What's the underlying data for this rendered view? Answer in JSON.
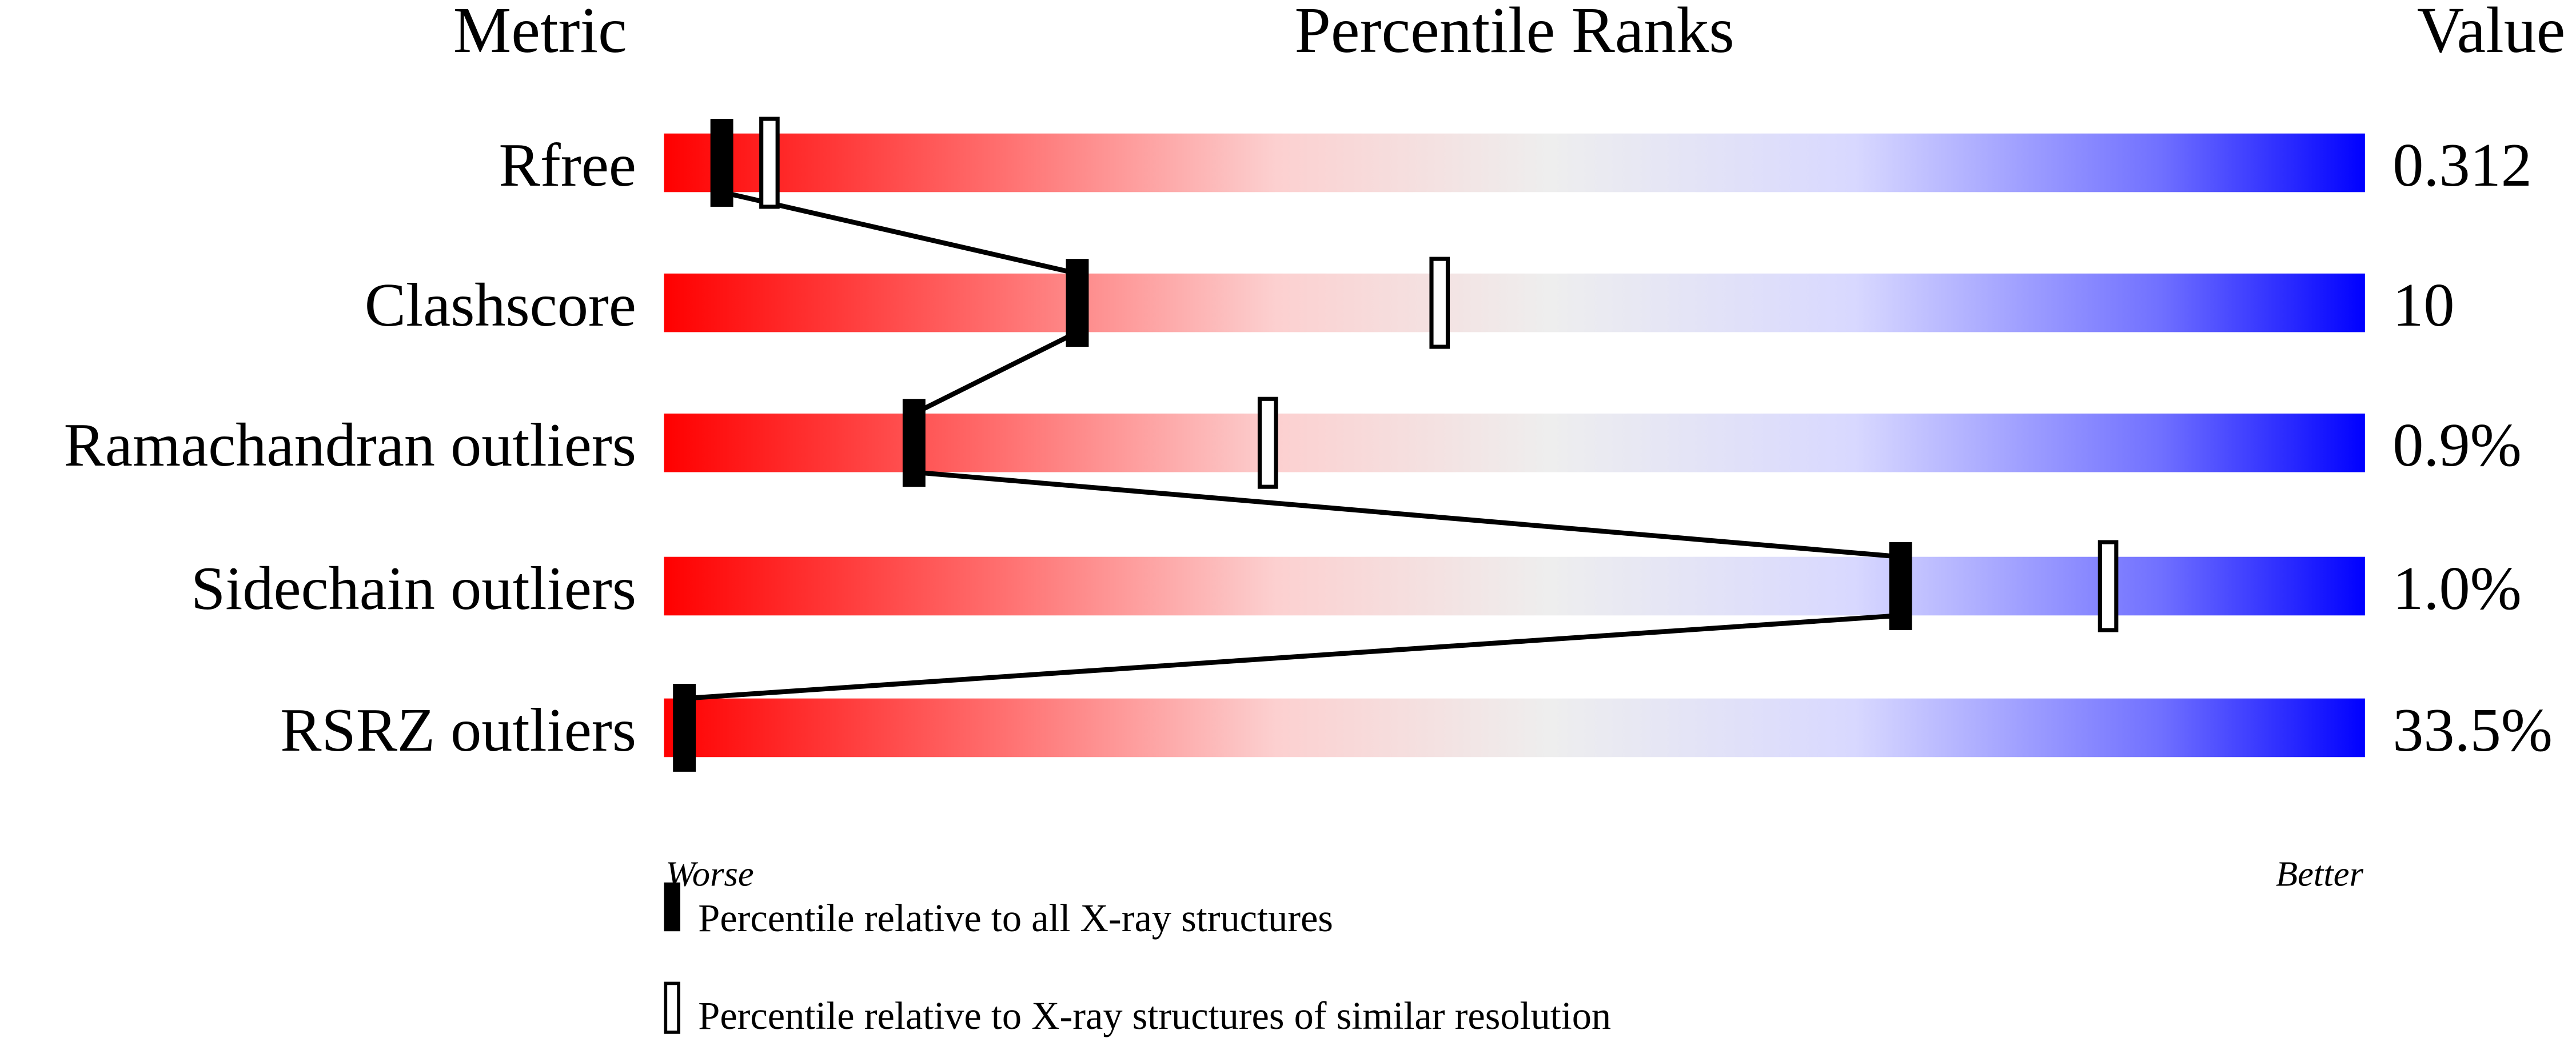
{
  "chart_data": {
    "type": "percentile-slider",
    "headers": {
      "metric": "Metric",
      "ranks": "Percentile Ranks",
      "value": "Value"
    },
    "xlim": [
      0,
      100
    ],
    "axis_labels": {
      "left": "Worse",
      "right": "Better"
    },
    "rows": [
      {
        "metric": "Rfree",
        "value": "0.312",
        "percentile_all": 3.4,
        "percentile_similar": 6.2
      },
      {
        "metric": "Clashscore",
        "value": "10",
        "percentile_all": 24.3,
        "percentile_similar": 45.6
      },
      {
        "metric": "Ramachandran outliers",
        "value": "0.9%",
        "percentile_all": 14.7,
        "percentile_similar": 35.5
      },
      {
        "metric": "Sidechain outliers",
        "value": "1.0%",
        "percentile_all": 72.7,
        "percentile_similar": 84.9
      },
      {
        "metric": "RSRZ outliers",
        "value": "33.5%",
        "percentile_all": 1.2,
        "percentile_similar": null
      }
    ],
    "legend": {
      "all": "Percentile relative to all X-ray structures",
      "similar": "Percentile relative to X-ray structures of similar resolution"
    },
    "gradient_colors": [
      "#ff0000",
      "#ff7070",
      "#fcd0d0",
      "#eeeeee",
      "#d8d8ff",
      "#7070ff",
      "#0000ff"
    ]
  }
}
